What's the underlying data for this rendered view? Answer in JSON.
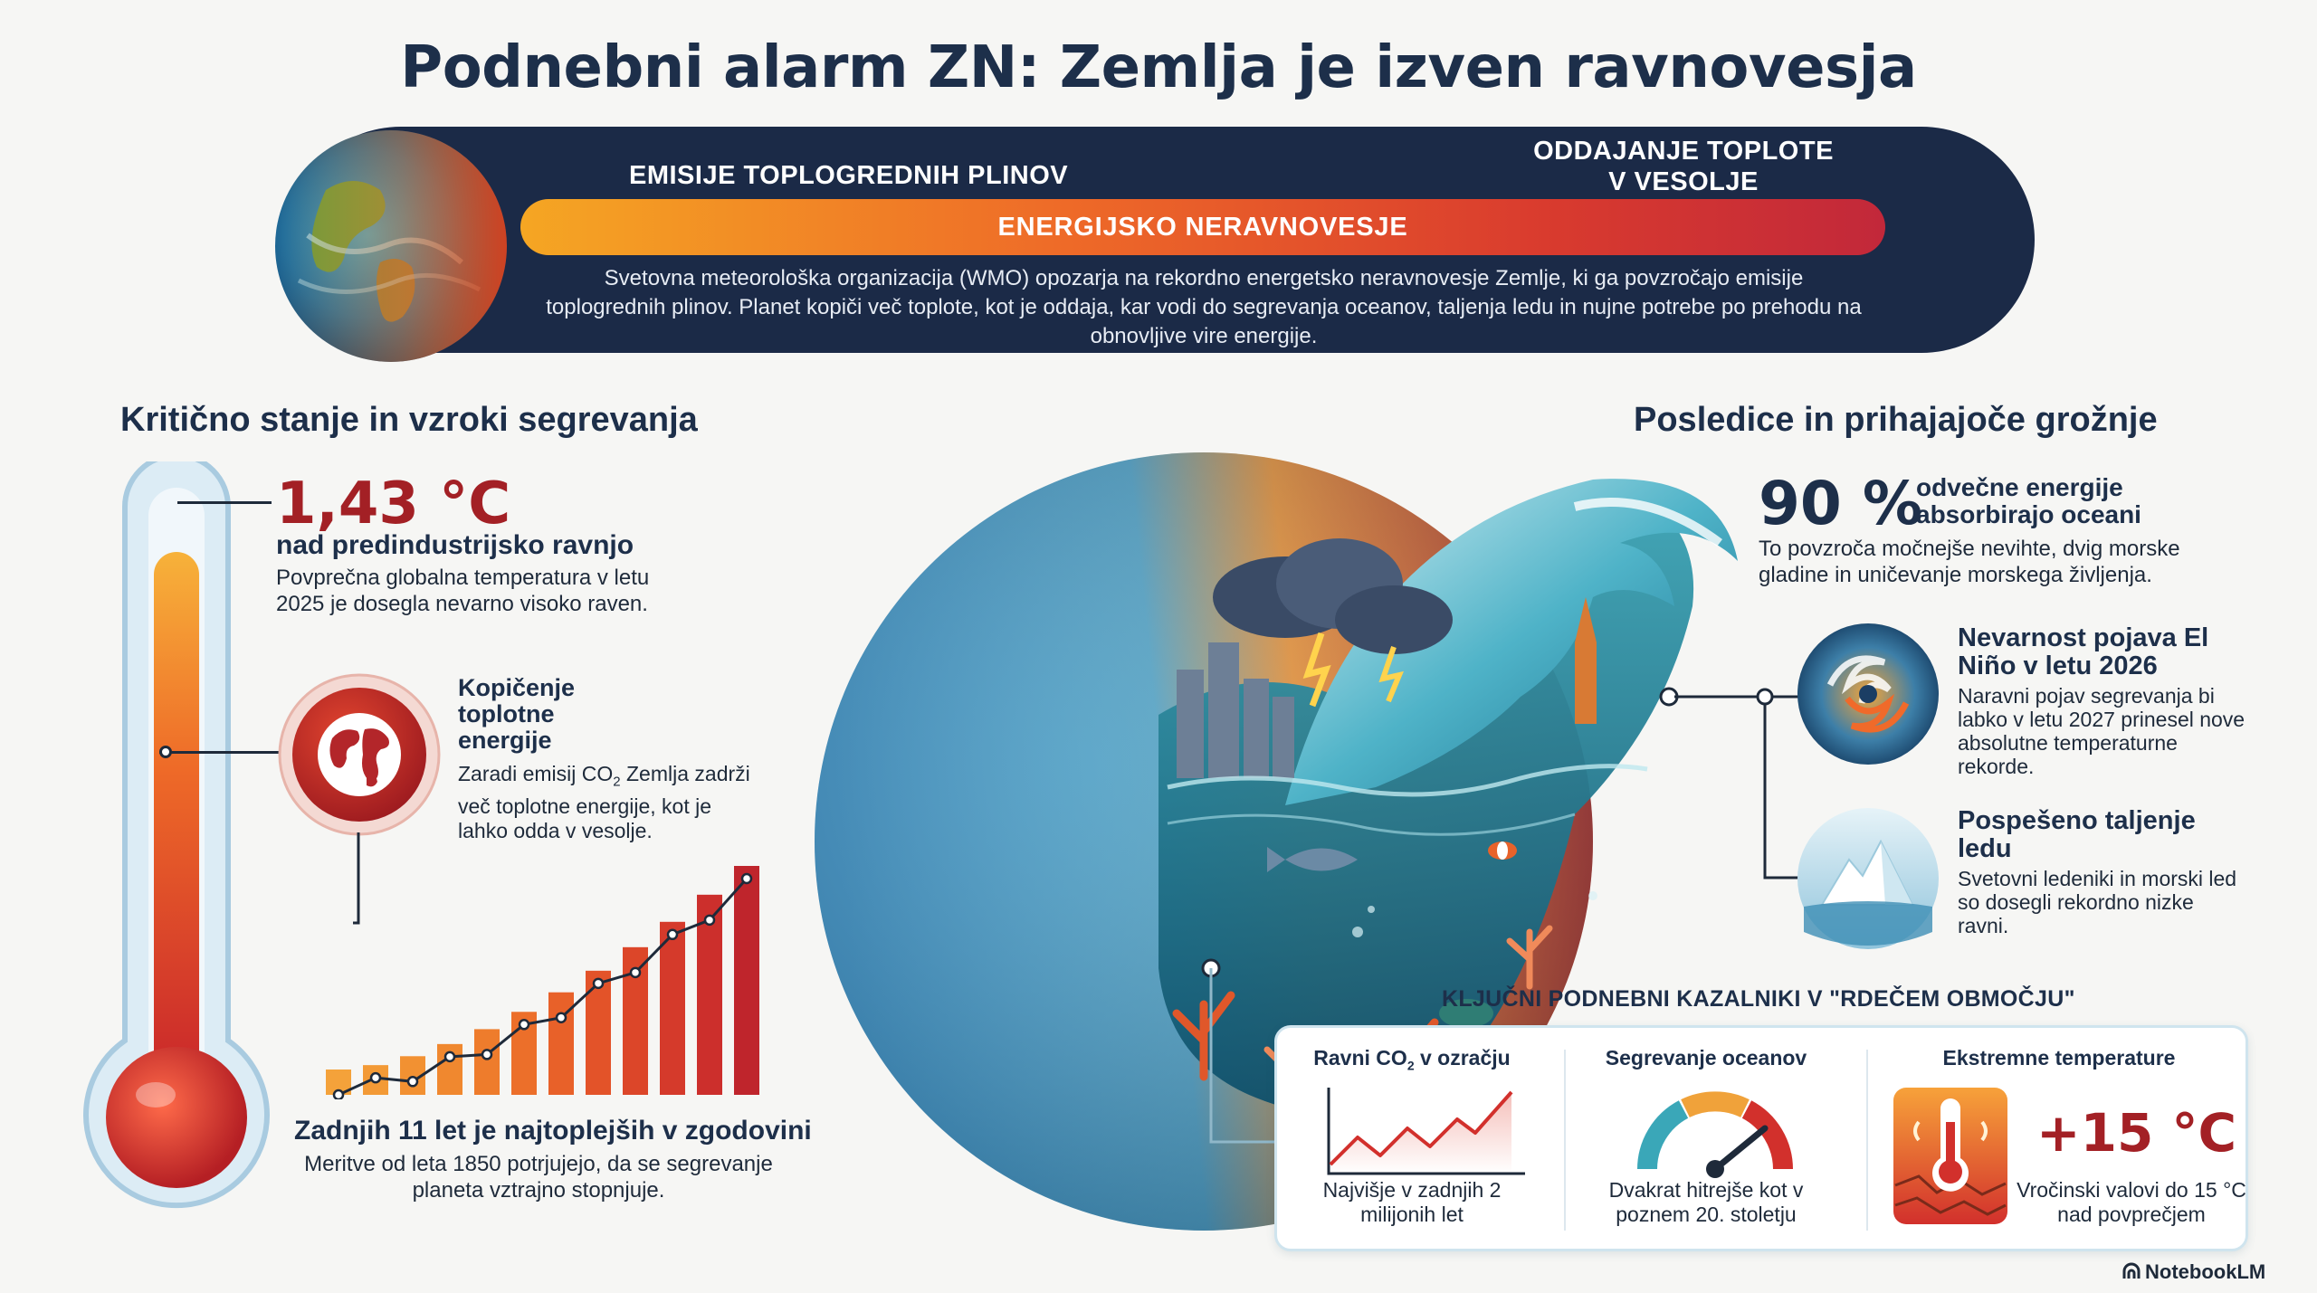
{
  "title": "Podnebni alarm ZN: Zemlja je izven ravnovesja",
  "banner": {
    "emissions_label": "EMISIJE TOPLOGREDNIH PLINOV",
    "heat_out_label": "ODDAJANJE TOPLOTE V VESOLJE",
    "imbalance_label": "ENERGIJSKO NERAVNOVESJE",
    "description": "Svetovna meteorološka organizacija (WMO) opozarja na rekordno energetsko neravnovesje Zemlje, ki ga povzročajo emisije toplogrednih plinov. Planet kopiči več toplote, kot je oddaja, kar vodi do segrevanja oceanov, taljenja ledu in nujne potrebe po prehodu na obnovljive vire energije."
  },
  "left": {
    "heading": "Kritično stanje in vzroki segrevanja",
    "temperature": {
      "value": "1,43 °C",
      "subtitle": "nad predindustrijsko ravnjo",
      "description": "Povprečna globalna temperatura v letu 2025 je dosegla nevarno visoko raven."
    },
    "accumulation": {
      "title": "Kopičenje toplotne energije",
      "description_pre": "Zaradi emisij CO",
      "description_sub": "2",
      "description_post": " Zemlja zadrži več toplotne energije, kot je lahko odda v vesolje."
    },
    "years": {
      "title": "Zadnjih 11 let je najtoplejših v zgodovini",
      "description": "Meritve od leta 1850 potrjujejo, da se segrevanje planeta vztrajno stopnjuje."
    }
  },
  "right": {
    "heading": "Posledice in prihajajoče grožnje",
    "ocean_energy": {
      "value": "90 %",
      "label": "odvečne energije absorbirajo oceani",
      "description": "To povzroča močnejše nevihte, dvig morske gladine in uničevanje morskega življenja."
    },
    "el_nino": {
      "title": "Nevarnost pojava El Niño v letu 2026",
      "description": "Naravni pojav segrevanja bi labko v letu 2027 prinesel nove absolutne temperaturne rekorde."
    },
    "ice": {
      "title": "Pospešeno taljenje ledu",
      "description": "Svetovni ledeniki in morski led so dosegli rekordno nizke ravni."
    }
  },
  "indicators": {
    "heading": "KLJUČNI PODNEBNI KAZALNIKI V \"RDEČEM OBMOČJU\"",
    "co2": {
      "title_pre": "Ravni CO",
      "title_sub": "2",
      "title_post": " v ozračju",
      "footer": "Najvišje v zadnjih 2 milijonih let"
    },
    "ocean": {
      "title": "Segrevanje oceanov",
      "footer": "Dvakrat hitrejše kot v poznem 20. stoletju"
    },
    "extreme": {
      "title": "Ekstremne temperature",
      "value": "+15 °C",
      "footer": "Vročinski valovi do 15 °C nad povprečjem"
    }
  },
  "credit": "NotebookLM",
  "colors": {
    "navy": "#1d2f4a",
    "accent_red": "#a32025",
    "banner_bg": "#1b2a47",
    "ocean_blue": "#2e86b8",
    "warm_orange": "#ee7a2a"
  },
  "icons": [
    "globe-icon",
    "thermometer-icon",
    "hurricane-icon",
    "iceberg-icon",
    "heat-thermometer-icon",
    "gauge-icon",
    "notebooklm-icon"
  ]
}
